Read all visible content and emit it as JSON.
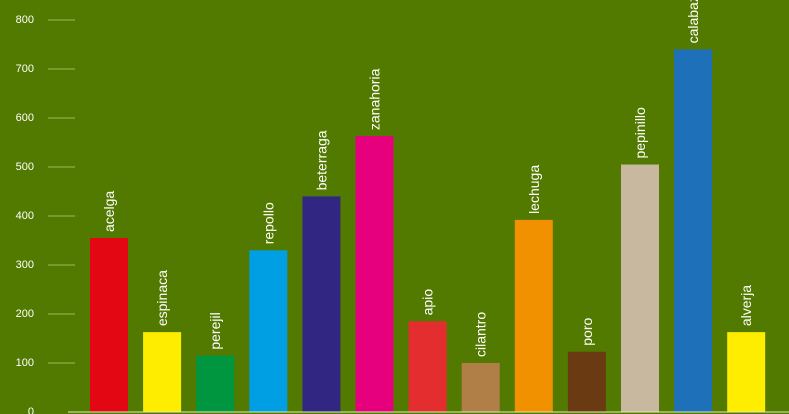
{
  "chart_data": {
    "type": "bar",
    "title": "",
    "xlabel": "",
    "ylabel": "",
    "ylim": [
      0,
      800
    ],
    "yticks": [
      0,
      100,
      200,
      300,
      400,
      500,
      600,
      700,
      800
    ],
    "grid": true,
    "legend": "none",
    "background_color": "#537a00",
    "categories": [
      "acelga",
      "espinaca",
      "perejil",
      "repollo",
      "beterraga",
      "zanahoria",
      "apio",
      "cilantro",
      "lechuga",
      "poro",
      "pepinillo",
      "calabaza",
      "alverja"
    ],
    "values": [
      355,
      163,
      115,
      330,
      440,
      563,
      185,
      100,
      392,
      123,
      505,
      740,
      163
    ],
    "colors": [
      "#e30613",
      "#ffed00",
      "#009640",
      "#009fe3",
      "#312783",
      "#e6007e",
      "#e42d2f",
      "#b07f48",
      "#f29100",
      "#6a3b12",
      "#c9b8a0",
      "#1e71b8",
      "#ffed00"
    ]
  }
}
